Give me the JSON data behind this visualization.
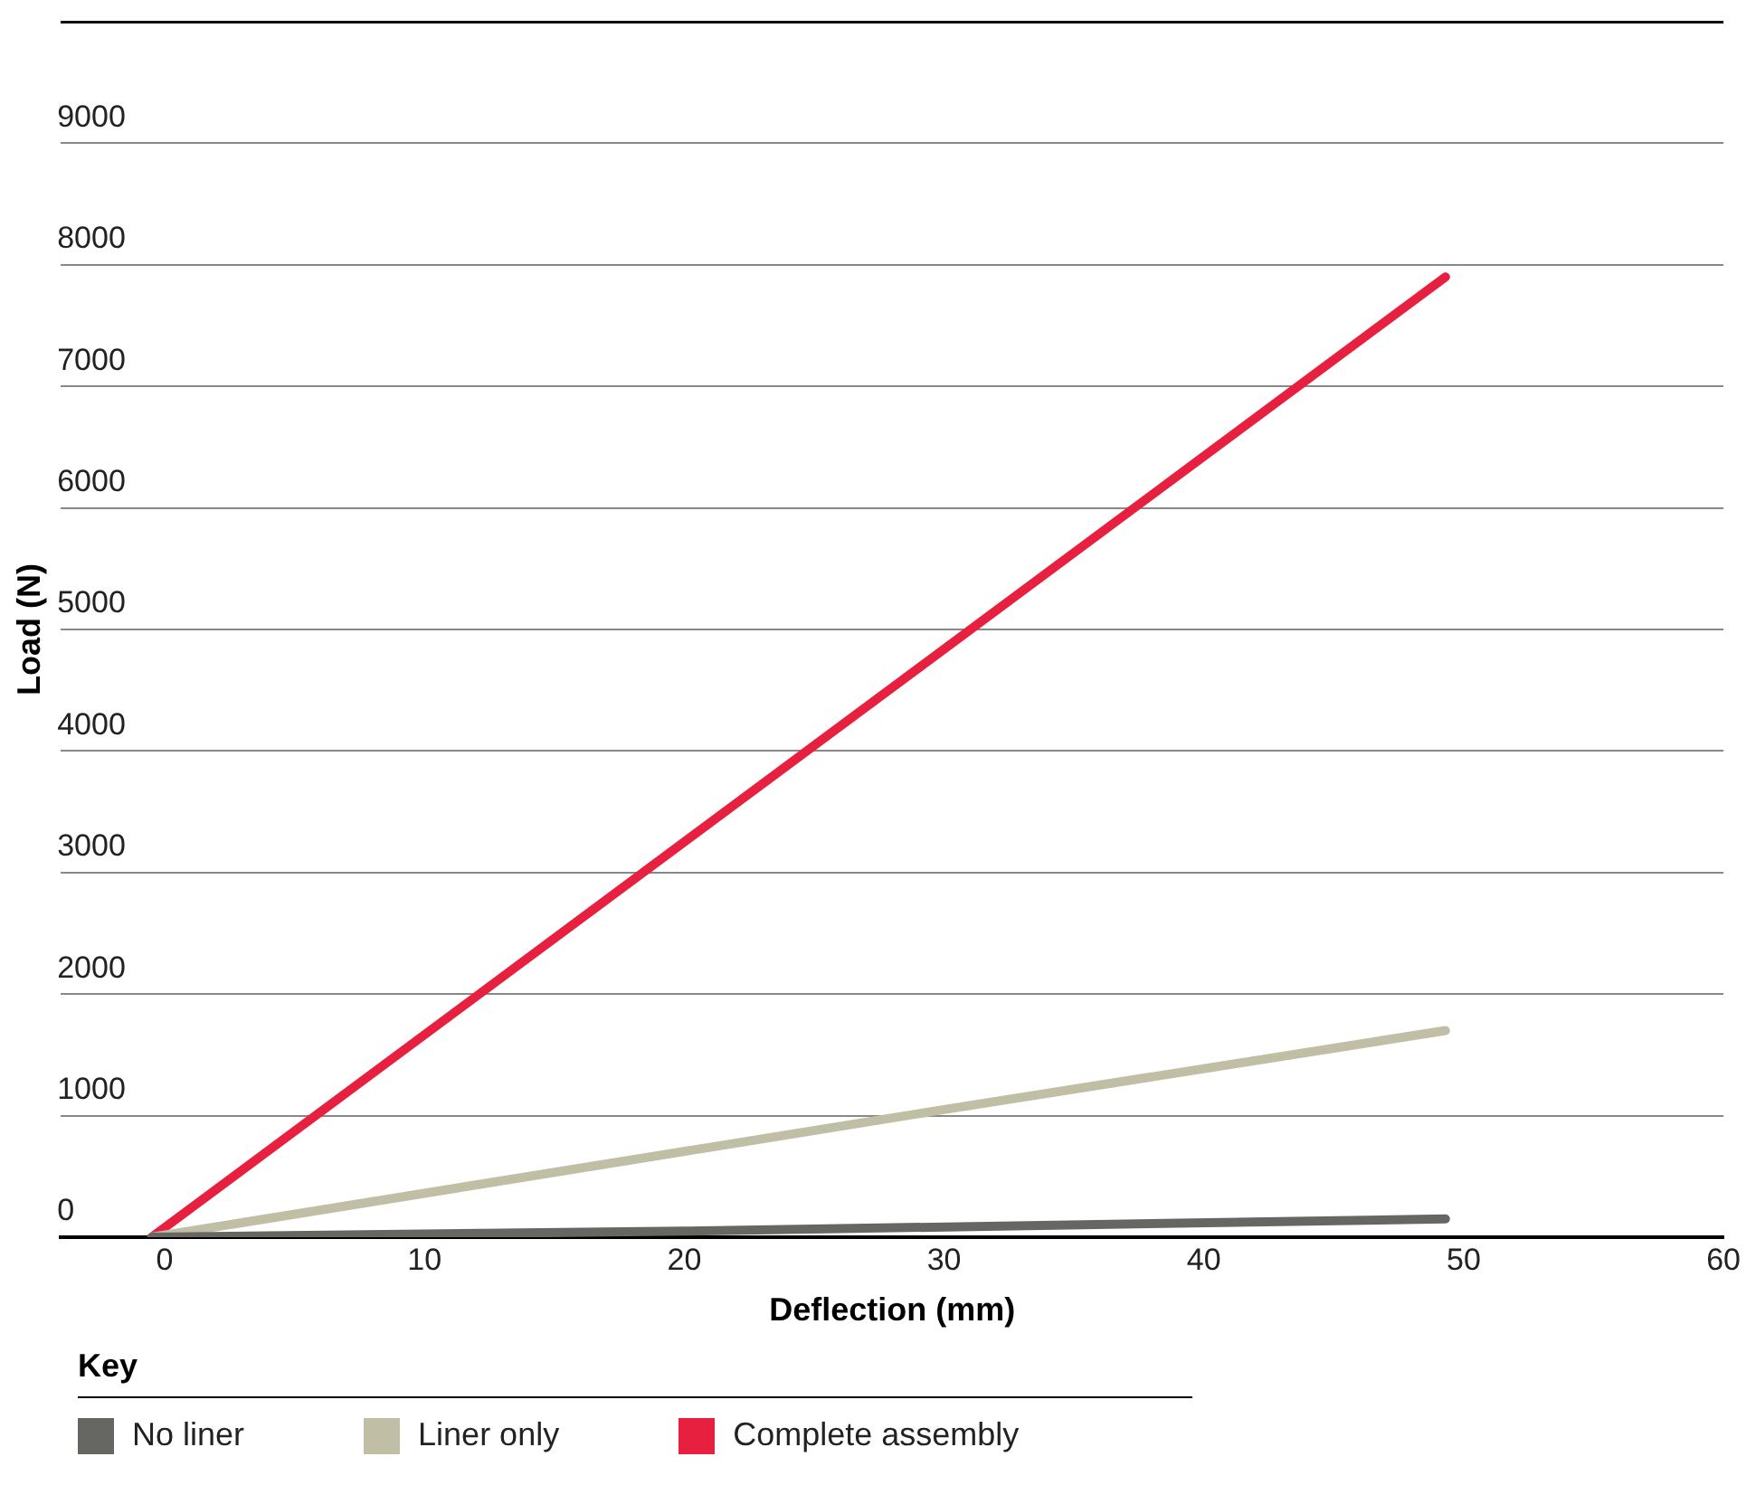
{
  "chart_data": {
    "type": "line",
    "xlabel": "Deflection (mm)",
    "ylabel": "Load (N)",
    "legend_title": "Key",
    "legend": "bottom left",
    "grid": "y",
    "marker": "none",
    "line_style": "solid",
    "xlim": [
      -4,
      60
    ],
    "xticks": [
      0,
      10,
      20,
      30,
      40,
      50,
      60
    ],
    "ylim": [
      0,
      10000
    ],
    "yticks": [
      0,
      1000,
      2000,
      3000,
      4000,
      5000,
      6000,
      7000,
      8000,
      9000,
      {
        "value": 10000,
        "label": null
      }
    ],
    "series": [
      {
        "name": "No liner",
        "color": "#666662",
        "x": [
          -0.5,
          20,
          49.3
        ],
        "values": [
          0,
          50,
          150
        ]
      },
      {
        "name": "Liner only",
        "color": "#c0bfa5",
        "x": [
          -0.5,
          30,
          49.3
        ],
        "values": [
          0,
          1050,
          1700
        ]
      },
      {
        "name": "Complete assembly",
        "color": "#e8203f",
        "x": [
          -0.5,
          49.3
        ],
        "values": [
          0,
          7900
        ]
      }
    ]
  }
}
